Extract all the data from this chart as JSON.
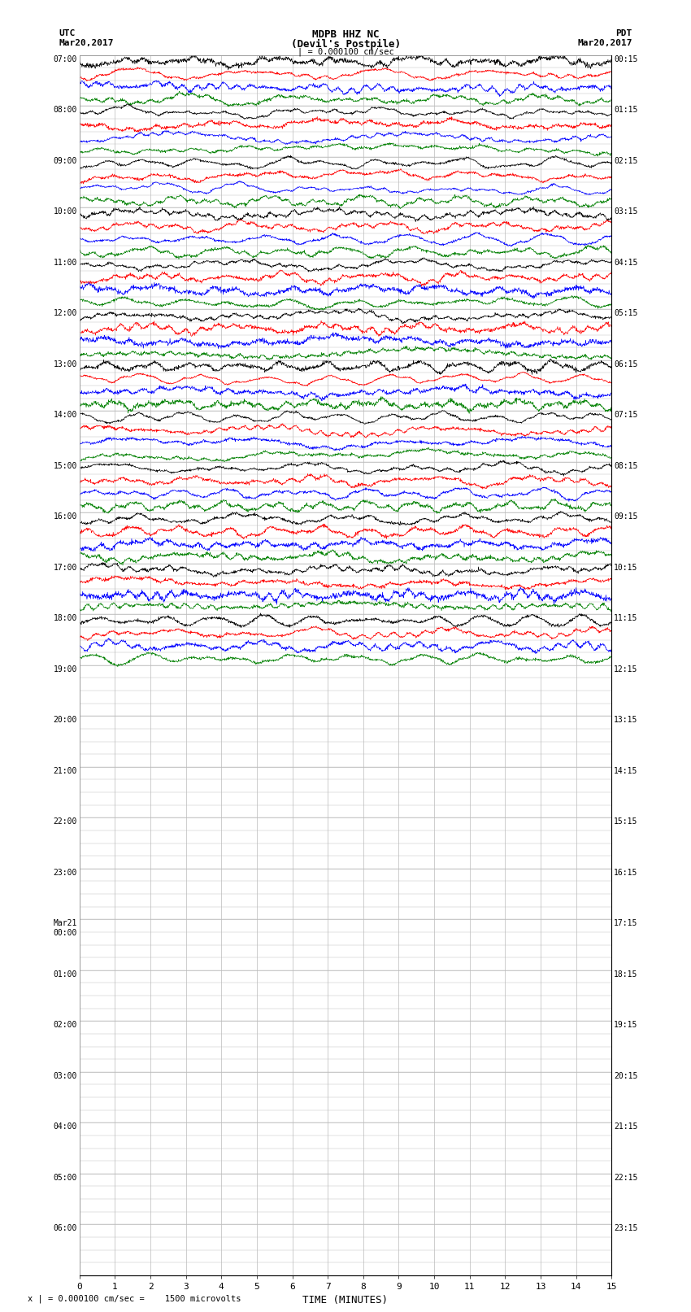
{
  "title_line1": "MDPB HHZ NC",
  "title_line2": "(Devil's Postpile)",
  "title_scale": "| = 0.000100 cm/sec",
  "label_utc": "UTC",
  "label_utc_date": "Mar20,2017",
  "label_pdt": "PDT",
  "label_pdt_date": "Mar20,2017",
  "xlabel": "TIME (MINUTES)",
  "footer": "x | = 0.000100 cm/sec =    1500 microvolts",
  "left_labels": [
    "07:00",
    "08:00",
    "09:00",
    "10:00",
    "11:00",
    "12:00",
    "13:00",
    "14:00",
    "15:00",
    "16:00",
    "17:00",
    "18:00",
    "19:00",
    "20:00",
    "21:00",
    "22:00",
    "23:00",
    "Mar21\n00:00",
    "01:00",
    "02:00",
    "03:00",
    "04:00",
    "05:00",
    "06:00"
  ],
  "right_labels": [
    "00:15",
    "01:15",
    "02:15",
    "03:15",
    "04:15",
    "05:15",
    "06:15",
    "07:15",
    "08:15",
    "09:15",
    "10:15",
    "11:15",
    "12:15",
    "13:15",
    "14:15",
    "15:15",
    "16:15",
    "17:15",
    "18:15",
    "19:15",
    "20:15",
    "21:15",
    "22:15",
    "23:15"
  ],
  "n_hour_blocks": 24,
  "traces_per_block": 4,
  "n_active_blocks": 12,
  "x_min": 0,
  "x_max": 15,
  "x_ticks": [
    0,
    1,
    2,
    3,
    4,
    5,
    6,
    7,
    8,
    9,
    10,
    11,
    12,
    13,
    14,
    15
  ],
  "colors_cycle": [
    "black",
    "red",
    "blue",
    "green"
  ],
  "background_color": "white",
  "grid_color": "#bbbbbb"
}
